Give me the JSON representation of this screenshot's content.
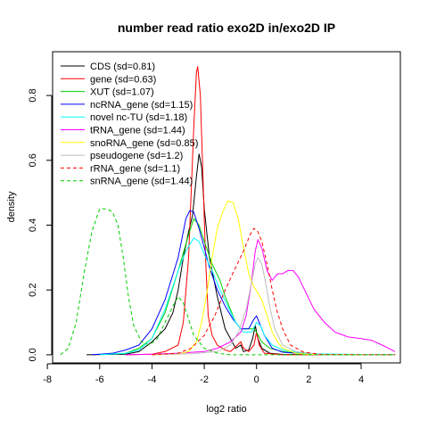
{
  "chart_data": {
    "type": "line",
    "title": "number read ratio exo2D in/exo2D IP",
    "xlabel": "log2 ratio",
    "ylabel": "density",
    "xlim": [
      -7.8,
      5.5
    ],
    "ylim": [
      -0.025,
      0.935
    ],
    "xticks": [
      -8,
      -6,
      -4,
      -2,
      0,
      2,
      4
    ],
    "xtick_labels": [
      "-8",
      "-6",
      "-4",
      "-2",
      "0",
      "2",
      "4"
    ],
    "yticks": [
      0.0,
      0.2,
      0.4,
      0.6,
      0.8
    ],
    "ytick_labels": [
      "0.0",
      "0.2",
      "0.4",
      "0.6",
      "0.8"
    ],
    "legend_position": "top-left",
    "grid": false,
    "series": [
      {
        "name": "CDS (sd=0.81)",
        "color": "#000000",
        "dash": "solid",
        "points": [
          [
            -6.5,
            0
          ],
          [
            -5,
            0.002
          ],
          [
            -4.5,
            0.01
          ],
          [
            -4,
            0.04
          ],
          [
            -3.5,
            0.08
          ],
          [
            -3.2,
            0.13
          ],
          [
            -3,
            0.2
          ],
          [
            -2.8,
            0.3
          ],
          [
            -2.6,
            0.38
          ],
          [
            -2.45,
            0.43
          ],
          [
            -2.3,
            0.55
          ],
          [
            -2.2,
            0.62
          ],
          [
            -2.1,
            0.58
          ],
          [
            -2,
            0.45
          ],
          [
            -1.8,
            0.3
          ],
          [
            -1.5,
            0.18
          ],
          [
            -1.2,
            0.08
          ],
          [
            -1,
            0.05
          ],
          [
            -0.8,
            0.02
          ],
          [
            -0.6,
            0.03
          ],
          [
            -0.5,
            0.01
          ],
          [
            -0.3,
            0.015
          ],
          [
            -0.15,
            0.05
          ],
          [
            -0.05,
            0.09
          ],
          [
            0.05,
            0.05
          ],
          [
            0.2,
            0.02
          ],
          [
            0.5,
            0.005
          ],
          [
            1,
            0.001
          ],
          [
            5.3,
            0
          ]
        ]
      },
      {
        "name": "gene (sd=0.63)",
        "color": "#FF0000",
        "dash": "solid",
        "points": [
          [
            -5,
            0
          ],
          [
            -4,
            0.002
          ],
          [
            -3.5,
            0.01
          ],
          [
            -3,
            0.03
          ],
          [
            -2.8,
            0.1
          ],
          [
            -2.6,
            0.3
          ],
          [
            -2.5,
            0.5
          ],
          [
            -2.4,
            0.7
          ],
          [
            -2.3,
            0.87
          ],
          [
            -2.25,
            0.89
          ],
          [
            -2.15,
            0.8
          ],
          [
            -2.05,
            0.55
          ],
          [
            -1.95,
            0.3
          ],
          [
            -1.85,
            0.12
          ],
          [
            -1.7,
            0.06
          ],
          [
            -1.5,
            0.03
          ],
          [
            -1.2,
            0.015
          ],
          [
            -1,
            0.01
          ],
          [
            -0.6,
            0.04
          ],
          [
            -0.5,
            0.02
          ],
          [
            -0.3,
            0.01
          ],
          [
            -0.1,
            0.03
          ],
          [
            0,
            0.07
          ],
          [
            0.1,
            0.03
          ],
          [
            0.3,
            0.005
          ],
          [
            1,
            0
          ],
          [
            5.3,
            0
          ]
        ]
      },
      {
        "name": "XUT (sd=1.07)",
        "color": "#00CD00",
        "dash": "solid",
        "points": [
          [
            -6,
            0
          ],
          [
            -5,
            0.005
          ],
          [
            -4.5,
            0.02
          ],
          [
            -4,
            0.05
          ],
          [
            -3.5,
            0.13
          ],
          [
            -3,
            0.26
          ],
          [
            -2.6,
            0.37
          ],
          [
            -2.4,
            0.42
          ],
          [
            -2.2,
            0.4
          ],
          [
            -2,
            0.35
          ],
          [
            -1.7,
            0.28
          ],
          [
            -1.4,
            0.23
          ],
          [
            -1.2,
            0.18
          ],
          [
            -1,
            0.14
          ],
          [
            -0.8,
            0.1
          ],
          [
            -0.6,
            0.08
          ],
          [
            -0.3,
            0.08
          ],
          [
            -0.1,
            0.08
          ],
          [
            0,
            0.07
          ],
          [
            0.2,
            0.04
          ],
          [
            0.5,
            0.02
          ],
          [
            1,
            0.01
          ],
          [
            2,
            0.002
          ],
          [
            3,
            0
          ],
          [
            5.3,
            0
          ]
        ]
      },
      {
        "name": "ncRNA_gene (sd=1.15)",
        "color": "#0000FF",
        "dash": "solid",
        "points": [
          [
            -6.3,
            0
          ],
          [
            -5.5,
            0.005
          ],
          [
            -5,
            0.015
          ],
          [
            -4.5,
            0.03
          ],
          [
            -4,
            0.08
          ],
          [
            -3.5,
            0.17
          ],
          [
            -3,
            0.3
          ],
          [
            -2.7,
            0.42
          ],
          [
            -2.55,
            0.445
          ],
          [
            -2.4,
            0.44
          ],
          [
            -2.2,
            0.39
          ],
          [
            -2,
            0.33
          ],
          [
            -1.8,
            0.27
          ],
          [
            -1.5,
            0.2
          ],
          [
            -1.2,
            0.15
          ],
          [
            -0.9,
            0.11
          ],
          [
            -0.6,
            0.08
          ],
          [
            -0.3,
            0.08
          ],
          [
            -0.1,
            0.11
          ],
          [
            0,
            0.12
          ],
          [
            0.1,
            0.1
          ],
          [
            0.3,
            0.06
          ],
          [
            0.6,
            0.02
          ],
          [
            1,
            0.008
          ],
          [
            2,
            0.002
          ],
          [
            5.3,
            0
          ]
        ]
      },
      {
        "name": "novel nc-TU (sd=1.18)",
        "color": "#00FFFF",
        "dash": "solid",
        "points": [
          [
            -6,
            0
          ],
          [
            -5,
            0.005
          ],
          [
            -4.5,
            0.015
          ],
          [
            -4,
            0.05
          ],
          [
            -3.5,
            0.14
          ],
          [
            -3,
            0.26
          ],
          [
            -2.7,
            0.32
          ],
          [
            -2.4,
            0.36
          ],
          [
            -2.2,
            0.35
          ],
          [
            -2,
            0.31
          ],
          [
            -1.7,
            0.26
          ],
          [
            -1.4,
            0.2
          ],
          [
            -1.1,
            0.15
          ],
          [
            -0.8,
            0.1
          ],
          [
            -0.5,
            0.07
          ],
          [
            -0.2,
            0.07
          ],
          [
            0,
            0.1
          ],
          [
            0.15,
            0.09
          ],
          [
            0.3,
            0.06
          ],
          [
            0.6,
            0.03
          ],
          [
            1,
            0.015
          ],
          [
            2,
            0.003
          ],
          [
            5.3,
            0
          ]
        ]
      },
      {
        "name": "tRNA_gene (sd=1.44)",
        "color": "#FF00FF",
        "dash": "solid",
        "points": [
          [
            -5,
            0
          ],
          [
            -4,
            0.002
          ],
          [
            -3,
            0.005
          ],
          [
            -2,
            0.01
          ],
          [
            -1.5,
            0.02
          ],
          [
            -1,
            0.04
          ],
          [
            -0.6,
            0.07
          ],
          [
            -0.4,
            0.12
          ],
          [
            -0.2,
            0.22
          ],
          [
            -0.05,
            0.32
          ],
          [
            0.05,
            0.355
          ],
          [
            0.2,
            0.33
          ],
          [
            0.4,
            0.26
          ],
          [
            0.6,
            0.23
          ],
          [
            0.8,
            0.25
          ],
          [
            1,
            0.25
          ],
          [
            1.2,
            0.26
          ],
          [
            1.4,
            0.26
          ],
          [
            1.6,
            0.24
          ],
          [
            1.9,
            0.19
          ],
          [
            2.2,
            0.14
          ],
          [
            2.6,
            0.1
          ],
          [
            3,
            0.07
          ],
          [
            3.5,
            0.055
          ],
          [
            4,
            0.05
          ],
          [
            4.4,
            0.045
          ],
          [
            4.8,
            0.03
          ],
          [
            5.3,
            0.01
          ]
        ]
      },
      {
        "name": "snoRNA_gene (sd=0.85)",
        "color": "#FFFF00",
        "dash": "solid",
        "points": [
          [
            -4,
            0
          ],
          [
            -3,
            0.002
          ],
          [
            -2.6,
            0.01
          ],
          [
            -2.3,
            0.04
          ],
          [
            -2.1,
            0.1
          ],
          [
            -1.9,
            0.19
          ],
          [
            -1.7,
            0.3
          ],
          [
            -1.5,
            0.39
          ],
          [
            -1.3,
            0.44
          ],
          [
            -1.1,
            0.475
          ],
          [
            -0.9,
            0.47
          ],
          [
            -0.7,
            0.42
          ],
          [
            -0.5,
            0.33
          ],
          [
            -0.3,
            0.25
          ],
          [
            -0.1,
            0.21
          ],
          [
            0.05,
            0.19
          ],
          [
            0.2,
            0.17
          ],
          [
            0.4,
            0.12
          ],
          [
            0.6,
            0.07
          ],
          [
            0.8,
            0.04
          ],
          [
            1,
            0.02
          ],
          [
            1.5,
            0.005
          ],
          [
            2,
            0.001
          ],
          [
            5.3,
            0
          ]
        ]
      },
      {
        "name": "pseudogene (sd=1.2)",
        "color": "#BEBEBE",
        "dash": "solid",
        "points": [
          [
            -4,
            0
          ],
          [
            -2.5,
            0.003
          ],
          [
            -1.5,
            0.01
          ],
          [
            -1,
            0.03
          ],
          [
            -0.7,
            0.07
          ],
          [
            -0.4,
            0.14
          ],
          [
            -0.2,
            0.22
          ],
          [
            -0.05,
            0.28
          ],
          [
            0.05,
            0.3
          ],
          [
            0.2,
            0.28
          ],
          [
            0.35,
            0.22
          ],
          [
            0.5,
            0.15
          ],
          [
            0.7,
            0.08
          ],
          [
            1,
            0.03
          ],
          [
            1.5,
            0.01
          ],
          [
            2.5,
            0
          ],
          [
            5.3,
            0
          ]
        ]
      },
      {
        "name": "rRNA_gene (sd=1.1)",
        "color": "#FF0000",
        "dash": "dashed",
        "points": [
          [
            -4,
            0
          ],
          [
            -3,
            0.005
          ],
          [
            -2.5,
            0.02
          ],
          [
            -2,
            0.06
          ],
          [
            -1.6,
            0.12
          ],
          [
            -1.2,
            0.2
          ],
          [
            -0.8,
            0.27
          ],
          [
            -0.5,
            0.32
          ],
          [
            -0.25,
            0.37
          ],
          [
            -0.1,
            0.39
          ],
          [
            0.05,
            0.38
          ],
          [
            0.2,
            0.35
          ],
          [
            0.4,
            0.28
          ],
          [
            0.6,
            0.2
          ],
          [
            0.8,
            0.13
          ],
          [
            1,
            0.08
          ],
          [
            1.3,
            0.03
          ],
          [
            1.8,
            0.008
          ],
          [
            2.5,
            0.001
          ],
          [
            5.3,
            0
          ]
        ]
      },
      {
        "name": "snRNA_gene (sd=1.44)",
        "color": "#00CD00",
        "dash": "dashed",
        "points": [
          [
            -7.5,
            0
          ],
          [
            -7.2,
            0.02
          ],
          [
            -6.9,
            0.1
          ],
          [
            -6.6,
            0.25
          ],
          [
            -6.3,
            0.38
          ],
          [
            -6,
            0.45
          ],
          [
            -5.7,
            0.45
          ],
          [
            -5.5,
            0.44
          ],
          [
            -5.3,
            0.4
          ],
          [
            -5.1,
            0.3
          ],
          [
            -4.9,
            0.18
          ],
          [
            -4.7,
            0.09
          ],
          [
            -4.4,
            0.04
          ],
          [
            -4.1,
            0.03
          ],
          [
            -3.8,
            0.05
          ],
          [
            -3.5,
            0.1
          ],
          [
            -3.2,
            0.15
          ],
          [
            -3,
            0.18
          ],
          [
            -2.8,
            0.16
          ],
          [
            -2.6,
            0.11
          ],
          [
            -2.4,
            0.06
          ],
          [
            -2,
            0.02
          ],
          [
            -1.5,
            0.005
          ],
          [
            -1,
            0
          ],
          [
            5.3,
            0
          ]
        ]
      }
    ]
  }
}
